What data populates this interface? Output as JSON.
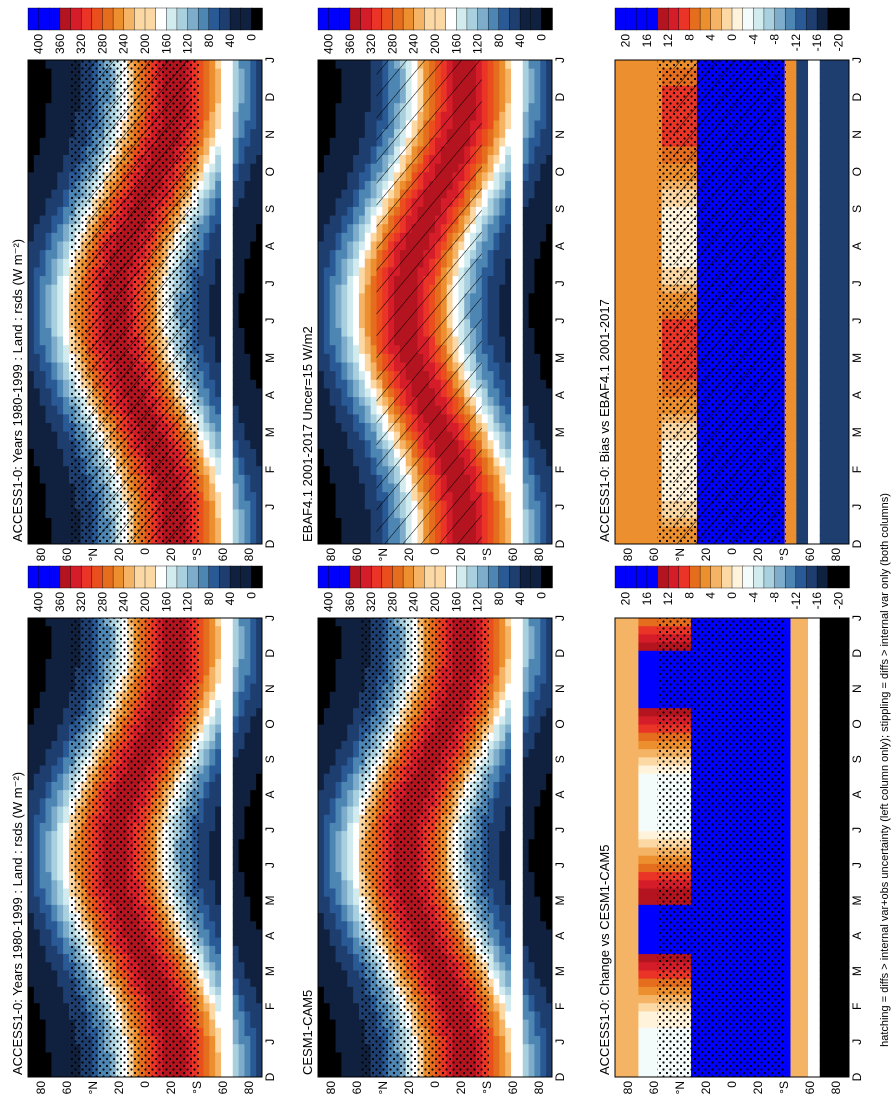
{
  "figure": {
    "footnote": "hatching = diffs > internal var+obs uncertainty (left column only); stippling = diffs > internal var only (both columns)",
    "colors": {
      "abs": [
        "#000000",
        "#10213f",
        "#1d3e6e",
        "#2a5a95",
        "#4e86b3",
        "#7eaccb",
        "#a9d0de",
        "#d2ebef",
        "#f4fbfb",
        "#ffffff",
        "#fff3dc",
        "#fbd8a4",
        "#f5b465",
        "#ec8f2f",
        "#e56d1e",
        "#e94e1c",
        "#e93427",
        "#d51d2a",
        "#b4141f",
        "#0000ff",
        "#0a1fe6",
        "#1e3ad0"
      ],
      "diff": [
        "#000000",
        "#10213f",
        "#1d3e6e",
        "#2a5a95",
        "#4e86b3",
        "#7eaccb",
        "#a9d0de",
        "#d2ebef",
        "#f4fbfb",
        "#ffffff",
        "#fff3dc",
        "#fbd8a4",
        "#f5b465",
        "#ec8f2f",
        "#e56d1e",
        "#e94e1c",
        "#e93427",
        "#d51d2a",
        "#b4141f",
        "#0000ff",
        "#0a1fe6",
        "#1e3ad0"
      ]
    }
  },
  "chart_data": [
    {
      "type": "heatmap",
      "id": "top-left",
      "title": "ACCESS1-0: Years 1980-1999 : Land : rsds (W m⁻²)",
      "x_ticks": [
        "D",
        "J",
        "F",
        "M",
        "A",
        "M",
        "J",
        "J",
        "A",
        "S",
        "O",
        "N",
        "D",
        "J"
      ],
      "y_ticks": [
        "80",
        "60",
        "°N",
        "20",
        "0",
        "20",
        "°S",
        "60",
        "80"
      ],
      "colorbar": {
        "ticks": [
          "400",
          "360",
          "320",
          "280",
          "240",
          "200",
          "160",
          "120",
          "80",
          "40",
          "0"
        ],
        "range": [
          0,
          420
        ]
      },
      "hatching": true,
      "stippling": true
    },
    {
      "type": "heatmap",
      "id": "top-right",
      "title": "ACCESS1-0: Years 1980-1999 : Land : rsds (W m⁻²)",
      "x_ticks": [
        "D",
        "J",
        "F",
        "M",
        "A",
        "M",
        "J",
        "J",
        "A",
        "S",
        "O",
        "N",
        "D",
        "J"
      ],
      "y_ticks": [
        "80",
        "60",
        "°N",
        "20",
        "0",
        "20",
        "°S",
        "60",
        "80"
      ],
      "colorbar": {
        "ticks": [
          "400",
          "360",
          "320",
          "280",
          "240",
          "200",
          "160",
          "120",
          "80",
          "40",
          "0"
        ],
        "range": [
          0,
          420
        ]
      },
      "hatching": false,
      "stippling": true
    },
    {
      "type": "heatmap",
      "id": "mid-left",
      "title": "EBAF4.1 2001-2017 Uncer=15 W/m2",
      "x_ticks": [
        "D",
        "J",
        "F",
        "M",
        "A",
        "M",
        "J",
        "J",
        "A",
        "S",
        "O",
        "N",
        "D",
        "J"
      ],
      "y_ticks": [
        "80",
        "60",
        "°N",
        "20",
        "0",
        "20",
        "°S",
        "60",
        "80"
      ],
      "colorbar": {
        "ticks": [
          "400",
          "360",
          "320",
          "280",
          "240",
          "200",
          "160",
          "120",
          "80",
          "40",
          "0"
        ],
        "range": [
          0,
          420
        ]
      },
      "hatching": true,
      "stippling": false
    },
    {
      "type": "heatmap",
      "id": "mid-right",
      "title": "CESM1-CAM5",
      "x_ticks": [
        "D",
        "J",
        "F",
        "M",
        "A",
        "M",
        "J",
        "J",
        "A",
        "S",
        "O",
        "N",
        "D",
        "J"
      ],
      "y_ticks": [
        "80",
        "60",
        "°N",
        "20",
        "0",
        "20",
        "°S",
        "60",
        "80"
      ],
      "colorbar": {
        "ticks": [
          "400",
          "360",
          "320",
          "280",
          "240",
          "200",
          "160",
          "120",
          "80",
          "40",
          "0"
        ],
        "range": [
          0,
          420
        ]
      },
      "hatching": false,
      "stippling": true
    },
    {
      "type": "heatmap",
      "id": "bot-left",
      "title": "ACCESS1-0: Bias vs EBAF4.1 2001-2017",
      "x_ticks": [
        "D",
        "J",
        "F",
        "M",
        "A",
        "M",
        "J",
        "J",
        "A",
        "S",
        "O",
        "N",
        "D",
        "J"
      ],
      "y_ticks": [
        "80",
        "60",
        "°N",
        "20",
        "0",
        "20",
        "°S",
        "60",
        "80"
      ],
      "colorbar": {
        "ticks": [
          "20",
          "16",
          "12",
          "8",
          "4",
          "0",
          "-4",
          "-8",
          "-12",
          "-16",
          "-20"
        ],
        "range": [
          -22,
          22
        ]
      },
      "hatching": true,
      "stippling": true
    },
    {
      "type": "heatmap",
      "id": "bot-right",
      "title": "ACCESS1-0: Change vs CESM1-CAM5",
      "x_ticks": [
        "D",
        "J",
        "F",
        "M",
        "A",
        "M",
        "J",
        "J",
        "A",
        "S",
        "O",
        "N",
        "D",
        "J"
      ],
      "y_ticks": [
        "80",
        "60",
        "°N",
        "20",
        "0",
        "20",
        "°S",
        "60",
        "80"
      ],
      "colorbar": {
        "ticks": [
          "20",
          "16",
          "12",
          "8",
          "4",
          "0",
          "-4",
          "-8",
          "-12",
          "-16",
          "-20"
        ],
        "range": [
          -22,
          22
        ]
      },
      "hatching": false,
      "stippling": true
    }
  ]
}
